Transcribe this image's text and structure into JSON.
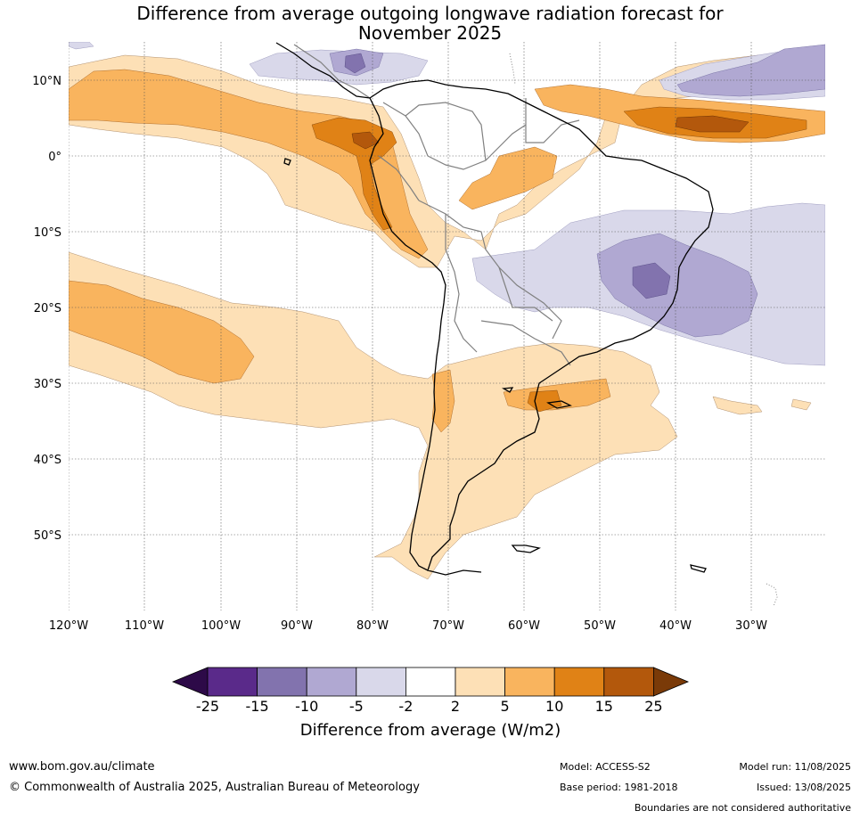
{
  "title_line1": "Difference from average outgoing longwave radiation forecast for",
  "title_line2": "November 2025",
  "lat_labels": [
    "10°N",
    "0°",
    "10°S",
    "20°S",
    "30°S",
    "40°S",
    "50°S"
  ],
  "lon_labels": [
    "120°W",
    "110°W",
    "100°W",
    "90°W",
    "80°W",
    "70°W",
    "60°W",
    "50°W",
    "40°W",
    "30°W"
  ],
  "colorbar": {
    "ticks": [
      "-25",
      "-15",
      "-10",
      "-5",
      "-2",
      "2",
      "5",
      "10",
      "15",
      "25"
    ],
    "colors": [
      "#5a2a8a",
      "#8273ae",
      "#b0a8d2",
      "#d9d8ea",
      "#ffffff",
      "#fde0b6",
      "#f9b45e",
      "#e08216",
      "#b3580c"
    ],
    "under_color": "#2d0a48",
    "over_color": "#7a3a08",
    "label": "Difference from average (W/m2)"
  },
  "footer": {
    "website": "www.bom.gov.au/climate",
    "copyright": "© Commonwealth of Australia 2025, Australian Bureau of Meteorology",
    "model": "Model: ACCESS-S2",
    "model_run": "Model run: 11/08/2025",
    "base_period": "Base period: 1981-2018",
    "issued": "Issued: 13/08/2025",
    "disclaimer": "Boundaries are not considered authoritative"
  }
}
